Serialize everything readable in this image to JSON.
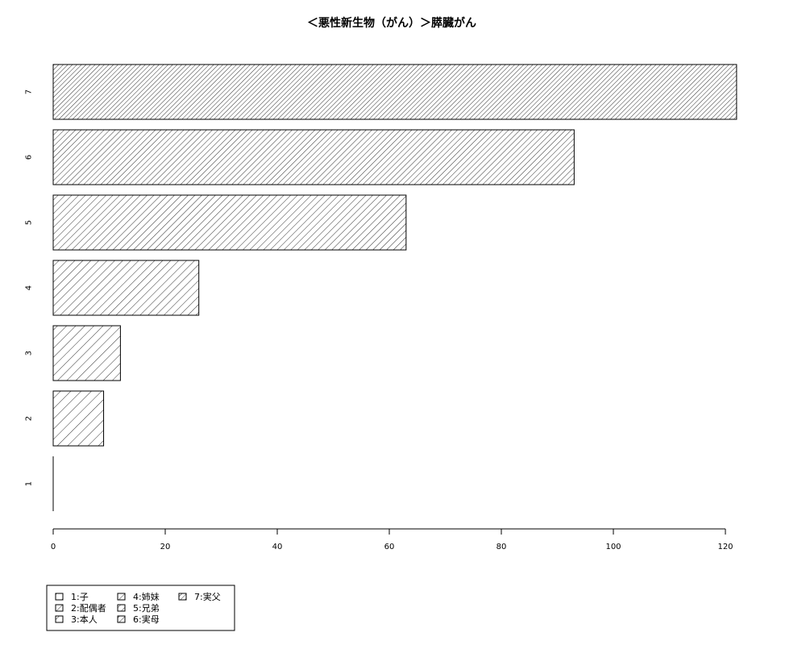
{
  "chart_data": {
    "type": "bar",
    "orientation": "horizontal",
    "title": "＜悪性新生物（がん）＞膵臓がん",
    "xlabel": "",
    "ylabel": "",
    "xlim": [
      0,
      122
    ],
    "x_ticks": [
      0,
      20,
      40,
      60,
      80,
      100,
      120
    ],
    "categories": [
      "1",
      "2",
      "3",
      "4",
      "5",
      "6",
      "7"
    ],
    "values": [
      0,
      9,
      12,
      26,
      63,
      93,
      122
    ],
    "grid": false,
    "legend": {
      "position": "bottom-left",
      "entries": [
        "1:子",
        "2:配偶者",
        "3:本人",
        "4:姉妹",
        "5:兄弟",
        "6:実母",
        "7:実父"
      ]
    }
  }
}
